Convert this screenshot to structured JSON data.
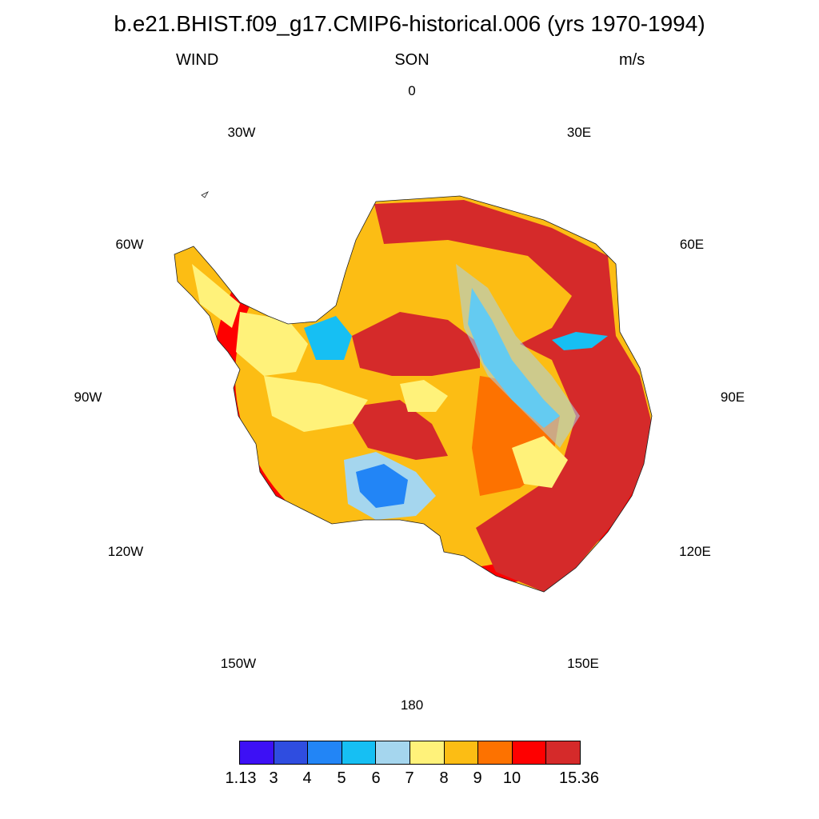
{
  "title": "b.e21.BHIST.f09_g17.CMIP6-historical.006 (yrs 1970-1994)",
  "left_label": "WIND",
  "center_label": "SON",
  "right_label": "m/s",
  "longitude_labels": {
    "lon_0": "0",
    "lon_30e": "30E",
    "lon_60e": "60E",
    "lon_90e": "90E",
    "lon_120e": "120E",
    "lon_150e": "150E",
    "lon_180": "180",
    "lon_150w": "150W",
    "lon_120w": "120W",
    "lon_90w": "90W",
    "lon_60w": "60W",
    "lon_30w": "30W"
  },
  "colorbar": {
    "colors": [
      "#3d10f5",
      "#2f4de0",
      "#2285f6",
      "#16bff3",
      "#a5d6ee",
      "#fff27a",
      "#fcbd14",
      "#fd7200",
      "#fe0000",
      "#d52a2a"
    ],
    "tick_labels": [
      "1.13",
      "3",
      "4",
      "5",
      "6",
      "7",
      "8",
      "9",
      "10",
      "15.36"
    ]
  },
  "map": {
    "projection": "polar stereographic (south pole)",
    "region": "Antarctica",
    "field": "WIND"
  }
}
